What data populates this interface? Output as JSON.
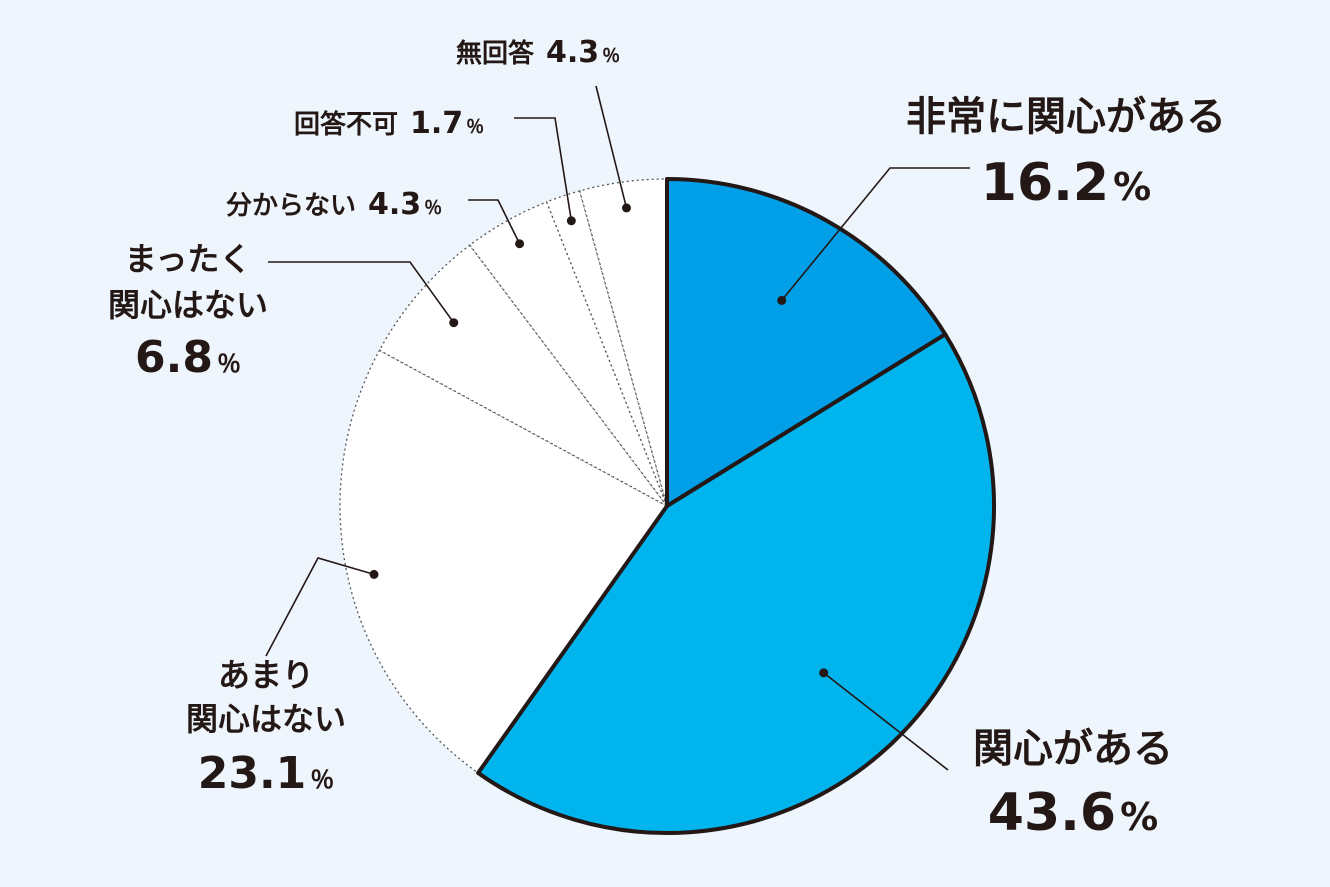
{
  "chart_data": {
    "type": "pie",
    "start": "top",
    "direction": "clockwise",
    "slices": [
      {
        "label": "非常に関心がある",
        "value": 16.2,
        "value_text": "16.2",
        "color": "#009fe8",
        "highlight": true
      },
      {
        "label": "関心がある",
        "value": 43.6,
        "value_text": "43.6",
        "color": "#00b4ee",
        "highlight": true
      },
      {
        "label": "あまり関心はない",
        "label_lines": [
          "あまり",
          "関心はない"
        ],
        "value": 23.1,
        "value_text": "23.1",
        "color": "#ffffff",
        "highlight": false
      },
      {
        "label": "まったく関心はない",
        "label_lines": [
          "まったく",
          "関心はない"
        ],
        "value": 6.8,
        "value_text": "6.8",
        "color": "#ffffff",
        "highlight": false
      },
      {
        "label": "分からない",
        "value": 4.3,
        "value_text": "4.3",
        "color": "#ffffff",
        "highlight": false
      },
      {
        "label": "回答不可",
        "value": 1.7,
        "value_text": "1.7",
        "color": "#ffffff",
        "highlight": false
      },
      {
        "label": "無回答",
        "value": 4.3,
        "value_text": "4.3",
        "color": "#ffffff",
        "highlight": false
      }
    ],
    "percent_sign": "%",
    "unit_small": "％"
  },
  "colors": {
    "background": "#eef5fc",
    "outline": "#231815",
    "dotted": "#555555"
  }
}
